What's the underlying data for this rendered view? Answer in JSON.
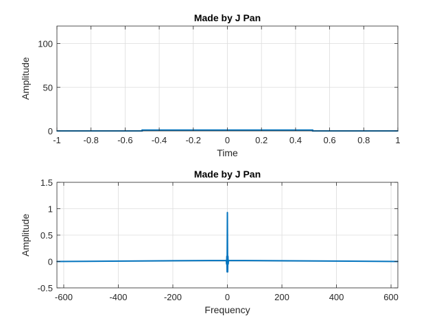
{
  "chart_data": [
    {
      "type": "line",
      "title": "Made by J Pan",
      "xlabel": "Time",
      "ylabel": "Amplitude",
      "xlim": [
        -1,
        1
      ],
      "ylim": [
        0,
        120
      ],
      "xticks": [
        -1,
        -0.8,
        -0.6,
        -0.4,
        -0.2,
        0,
        0.2,
        0.4,
        0.6,
        0.8,
        1
      ],
      "xtick_labels": [
        "-1",
        "-0.8",
        "-0.6",
        "-0.4",
        "-0.2",
        "0",
        "0.2",
        "0.4",
        "0.6",
        "0.8",
        "1"
      ],
      "yticks": [
        0,
        50,
        100
      ],
      "ytick_labels": [
        "0",
        "50",
        "100"
      ],
      "grid": true,
      "color": "#0072BD",
      "series": [
        {
          "x": [
            -1,
            -0.5,
            -0.5,
            0.5,
            0.5,
            1
          ],
          "y": [
            0,
            0,
            1,
            1,
            0,
            0
          ]
        }
      ]
    },
    {
      "type": "line",
      "title": "Made by J Pan",
      "xlabel": "Frequency",
      "ylabel": "Amplitude",
      "xlim": [
        -625,
        625
      ],
      "ylim": [
        -0.5,
        1.5
      ],
      "xticks": [
        -600,
        -400,
        -200,
        0,
        200,
        400,
        600
      ],
      "xtick_labels": [
        "-600",
        "-400",
        "-200",
        "0",
        "200",
        "400",
        "600"
      ],
      "yticks": [
        -0.5,
        0,
        0.5,
        1,
        1.5
      ],
      "ytick_labels": [
        "-0.5",
        "0",
        "0.5",
        "1",
        "1.5"
      ],
      "grid": true,
      "color": "#0072BD",
      "series": [
        {
          "x": [
            -625,
            -4,
            -3,
            -2,
            -1,
            0,
            1,
            2,
            3,
            4,
            625
          ],
          "y": [
            0,
            0.02,
            -0.05,
            0.1,
            -0.2,
            0.93,
            -0.2,
            0.1,
            -0.05,
            0.02,
            0
          ]
        }
      ]
    }
  ]
}
